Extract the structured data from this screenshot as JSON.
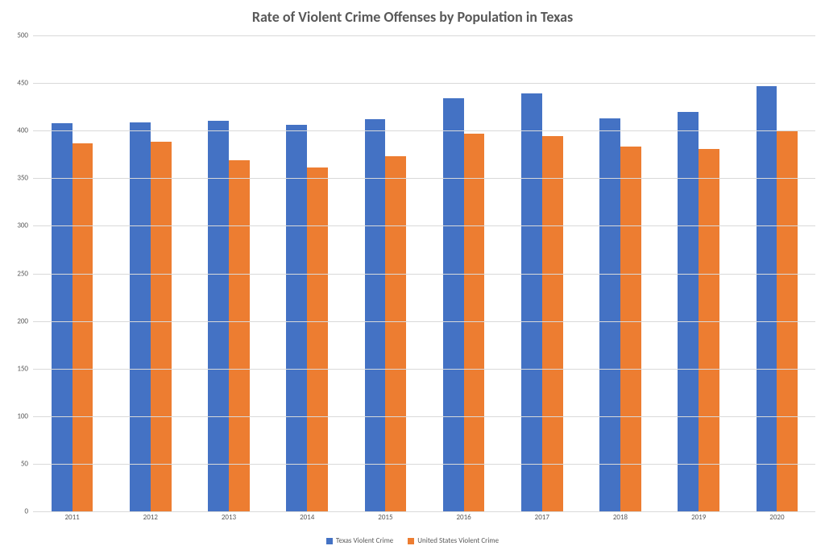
{
  "chart": {
    "type": "bar-grouped",
    "title": "Rate of Violent Crime Offenses by Population in Texas",
    "title_fontsize": 18,
    "title_color": "#595959",
    "background_color": "#ffffff",
    "grid_color": "#d9d9d9",
    "axis_label_color": "#595959",
    "axis_label_fontsize": 9,
    "legend_fontsize": 9,
    "ylim": [
      0,
      500
    ],
    "ytick_step": 50,
    "categories": [
      "2011",
      "2012",
      "2013",
      "2014",
      "2015",
      "2016",
      "2017",
      "2018",
      "2019",
      "2020"
    ],
    "series": [
      {
        "name": "Texas Violent Crime",
        "color": "#4472c4",
        "values": [
          408,
          409,
          410,
          406,
          412,
          434,
          439,
          413,
          420,
          447
        ]
      },
      {
        "name": "United States Violent Crime",
        "color": "#ed7d31",
        "values": [
          387,
          388,
          369,
          361,
          373,
          397,
          394,
          383,
          381,
          399
        ]
      }
    ],
    "bar_group_width": 0.53,
    "bar_gap_within_group": 0.0
  }
}
